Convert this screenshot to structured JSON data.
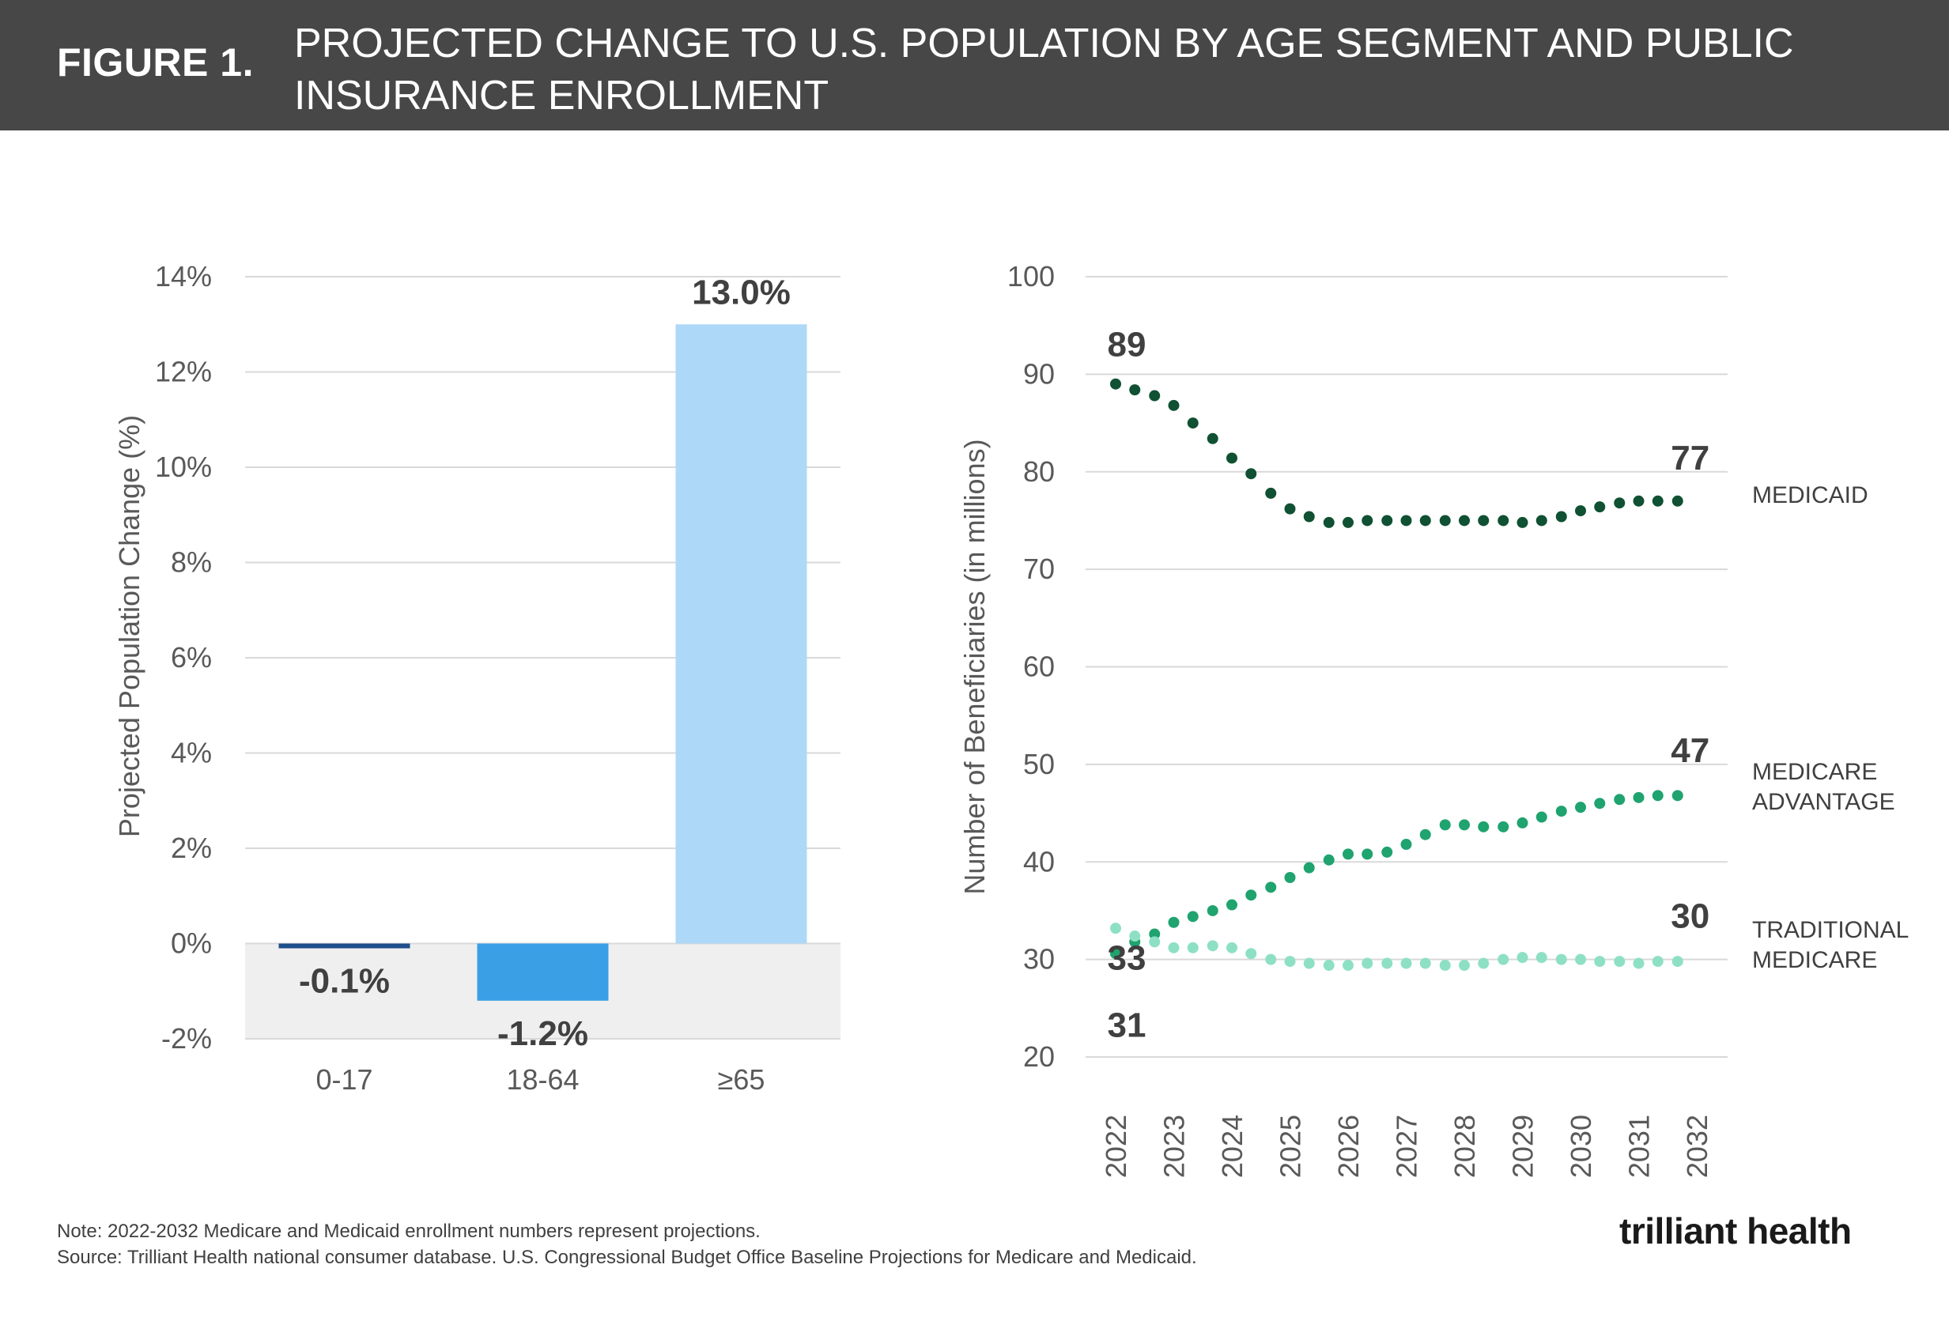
{
  "header": {
    "figure_label": "FIGURE 1.",
    "title": "PROJECTED CHANGE TO U.S. POPULATION BY AGE SEGMENT AND PUBLIC INSURANCE ENROLLMENT"
  },
  "chart_data": [
    {
      "type": "bar",
      "categories": [
        "0-17",
        "18-64",
        "≥65"
      ],
      "values": [
        -0.1,
        -1.2,
        13.0
      ],
      "value_labels": [
        "-0.1%",
        "-1.2%",
        "13.0%"
      ],
      "colors": [
        "#1f4e8c",
        "#3b9fe6",
        "#aed8f7"
      ],
      "ylabel": "Projected Population Change (%)",
      "ylim": [
        -2,
        14
      ],
      "yticks": [
        -2,
        0,
        2,
        4,
        6,
        8,
        10,
        12,
        14
      ],
      "ytick_labels": [
        "-2%",
        "0%",
        "2%",
        "4%",
        "6%",
        "8%",
        "10%",
        "12%",
        "14%"
      ],
      "grid": true,
      "negative_region_shaded": true
    },
    {
      "type": "scatter",
      "ylabel": "Number of Beneficiaries (in millions)",
      "ylim": [
        20,
        100
      ],
      "yticks": [
        20,
        30,
        40,
        50,
        60,
        70,
        80,
        90,
        100
      ],
      "xlim": [
        2022,
        2032
      ],
      "xticks": [
        "2022",
        "2023",
        "2024",
        "2025",
        "2026",
        "2027",
        "2028",
        "2029",
        "2030",
        "2031",
        "2032"
      ],
      "grid": true,
      "series": [
        {
          "name": "MEDICAID",
          "color": "#0f5132",
          "x": [
            2022,
            2022.33,
            2022.67,
            2023,
            2023.33,
            2023.67,
            2024,
            2024.33,
            2024.67,
            2025,
            2025.33,
            2025.67,
            2026,
            2026.33,
            2026.67,
            2027,
            2027.33,
            2027.67,
            2028,
            2028.33,
            2028.67,
            2029,
            2029.33,
            2029.67,
            2030,
            2030.33,
            2030.67,
            2031,
            2031.33,
            2031.67
          ],
          "y": [
            89,
            88.4,
            87.8,
            86.8,
            85,
            83.4,
            81.4,
            79.8,
            77.8,
            76.2,
            75.4,
            74.8,
            74.8,
            75,
            75,
            75,
            75,
            75,
            75,
            75,
            75,
            74.8,
            75,
            75.4,
            76,
            76.4,
            76.8,
            77,
            77,
            77
          ],
          "start_label": "89",
          "end_label": "77"
        },
        {
          "name": "MEDICARE ADVANTAGE",
          "color": "#1fa36f",
          "x": [
            2022,
            2022.33,
            2022.67,
            2023,
            2023.33,
            2023.67,
            2024,
            2024.33,
            2024.67,
            2025,
            2025.33,
            2025.67,
            2026,
            2026.33,
            2026.67,
            2027,
            2027.33,
            2027.67,
            2028,
            2028.33,
            2028.67,
            2029,
            2029.33,
            2029.67,
            2030,
            2030.33,
            2030.67,
            2031,
            2031.33,
            2031.67
          ],
          "y": [
            30.6,
            31.8,
            32.6,
            33.8,
            34.4,
            35,
            35.6,
            36.6,
            37.4,
            38.4,
            39.4,
            40.2,
            40.8,
            40.8,
            41,
            41.8,
            42.8,
            43.8,
            43.8,
            43.6,
            43.6,
            44,
            44.6,
            45.2,
            45.6,
            46,
            46.4,
            46.6,
            46.8,
            46.8
          ],
          "start_label": "31",
          "end_label": "47"
        },
        {
          "name": "TRADITIONAL MEDICARE",
          "color": "#8ee0c4",
          "x": [
            2022,
            2022.33,
            2022.67,
            2023,
            2023.33,
            2023.67,
            2024,
            2024.33,
            2024.67,
            2025,
            2025.33,
            2025.67,
            2026,
            2026.33,
            2026.67,
            2027,
            2027.33,
            2027.67,
            2028,
            2028.33,
            2028.67,
            2029,
            2029.33,
            2029.67,
            2030,
            2030.33,
            2030.67,
            2031,
            2031.33,
            2031.67
          ],
          "y": [
            33.2,
            32.4,
            31.8,
            31.2,
            31.2,
            31.4,
            31.2,
            30.6,
            30,
            29.8,
            29.6,
            29.4,
            29.4,
            29.6,
            29.6,
            29.6,
            29.6,
            29.4,
            29.4,
            29.6,
            30,
            30.2,
            30.2,
            30,
            30,
            29.8,
            29.8,
            29.6,
            29.8,
            29.8
          ],
          "start_label": "33",
          "end_label": "30"
        }
      ],
      "series_labels": [
        "MEDICAID",
        "MEDICARE",
        "ADVANTAGE",
        "TRADITIONAL",
        "MEDICARE"
      ]
    }
  ],
  "footer": {
    "note": "Note: 2022-2032 Medicare and Medicaid enrollment numbers represent projections.",
    "source": "Source: Trilliant Health national consumer database. U.S. Congressional Budget Office Baseline Projections for Medicare and Medicaid.",
    "logo_text": "trilliant health"
  }
}
